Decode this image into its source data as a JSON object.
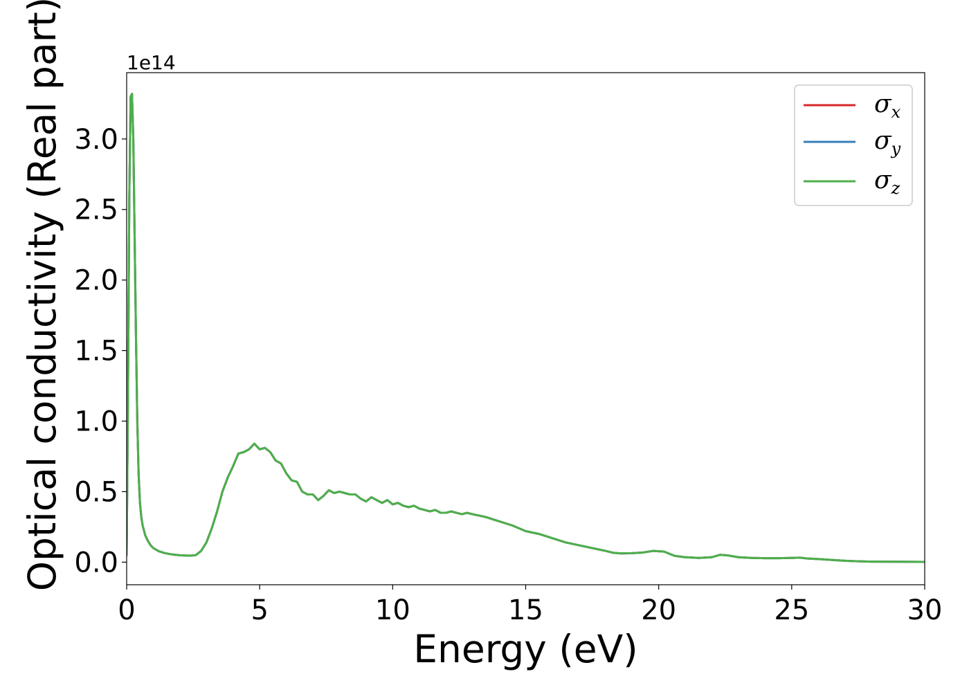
{
  "chart_data": {
    "type": "line",
    "title": "",
    "xlabel": "Energy (eV)",
    "ylabel": "Optical conductivity (Real part)",
    "y_offset_label": "1e14",
    "xlim": [
      0,
      30
    ],
    "ylim": [
      -0.16,
      3.47
    ],
    "x_ticks": [
      0,
      5,
      10,
      15,
      20,
      25,
      30
    ],
    "x_tick_labels": [
      "0",
      "5",
      "10",
      "15",
      "20",
      "25",
      "30"
    ],
    "y_ticks": [
      0.0,
      0.5,
      1.0,
      1.5,
      2.0,
      2.5,
      3.0
    ],
    "y_tick_labels": [
      "0.0",
      "0.5",
      "1.0",
      "1.5",
      "2.0",
      "2.5",
      "3.0"
    ],
    "grid": false,
    "legend_position": "top-right",
    "x": [
      0.0,
      0.05,
      0.1,
      0.15,
      0.2,
      0.25,
      0.3,
      0.35,
      0.4,
      0.45,
      0.5,
      0.55,
      0.6,
      0.7,
      0.8,
      0.9,
      1.0,
      1.2,
      1.4,
      1.6,
      1.8,
      2.0,
      2.2,
      2.4,
      2.6,
      2.8,
      3.0,
      3.2,
      3.4,
      3.6,
      3.8,
      4.0,
      4.2,
      4.4,
      4.6,
      4.8,
      5.0,
      5.2,
      5.4,
      5.6,
      5.8,
      6.0,
      6.2,
      6.4,
      6.6,
      6.8,
      7.0,
      7.2,
      7.4,
      7.6,
      7.8,
      8.0,
      8.2,
      8.4,
      8.6,
      8.8,
      9.0,
      9.2,
      9.4,
      9.6,
      9.8,
      10.0,
      10.2,
      10.4,
      10.6,
      10.8,
      11.0,
      11.2,
      11.4,
      11.6,
      11.8,
      12.0,
      12.2,
      12.4,
      12.6,
      12.8,
      13.0,
      13.5,
      14.0,
      14.5,
      15.0,
      15.5,
      16.0,
      16.5,
      17.0,
      17.5,
      18.0,
      18.3,
      18.6,
      19.0,
      19.4,
      19.8,
      20.2,
      20.6,
      21.0,
      21.5,
      22.0,
      22.3,
      22.6,
      23.0,
      23.5,
      24.0,
      24.5,
      25.0,
      25.3,
      25.6,
      26.0,
      26.5,
      27.0,
      27.5,
      28.0,
      29.0,
      30.0
    ],
    "series": [
      {
        "name": "σx",
        "symbol": "σ",
        "subscript": "x",
        "color": "#d62728",
        "values": [
          0.05,
          1.2,
          2.6,
          3.3,
          3.32,
          3.0,
          2.3,
          1.6,
          1.0,
          0.62,
          0.42,
          0.32,
          0.26,
          0.19,
          0.15,
          0.12,
          0.1,
          0.078,
          0.066,
          0.058,
          0.053,
          0.049,
          0.047,
          0.046,
          0.05,
          0.08,
          0.14,
          0.24,
          0.36,
          0.5,
          0.6,
          0.68,
          0.77,
          0.78,
          0.8,
          0.84,
          0.8,
          0.81,
          0.78,
          0.72,
          0.7,
          0.63,
          0.58,
          0.57,
          0.5,
          0.48,
          0.48,
          0.44,
          0.47,
          0.51,
          0.49,
          0.5,
          0.49,
          0.48,
          0.48,
          0.45,
          0.43,
          0.46,
          0.44,
          0.42,
          0.44,
          0.41,
          0.42,
          0.4,
          0.39,
          0.4,
          0.38,
          0.37,
          0.36,
          0.37,
          0.35,
          0.35,
          0.36,
          0.35,
          0.34,
          0.35,
          0.34,
          0.32,
          0.29,
          0.26,
          0.22,
          0.2,
          0.17,
          0.14,
          0.12,
          0.1,
          0.08,
          0.066,
          0.062,
          0.064,
          0.068,
          0.08,
          0.075,
          0.045,
          0.035,
          0.03,
          0.035,
          0.052,
          0.048,
          0.035,
          0.03,
          0.028,
          0.028,
          0.03,
          0.032,
          0.026,
          0.022,
          0.016,
          0.01,
          0.006,
          0.004,
          0.003,
          0.002
        ]
      },
      {
        "name": "σy",
        "symbol": "σ",
        "subscript": "y",
        "color": "#377eb8",
        "values": [
          0.05,
          1.2,
          2.6,
          3.3,
          3.32,
          3.0,
          2.3,
          1.6,
          1.0,
          0.62,
          0.42,
          0.32,
          0.26,
          0.19,
          0.15,
          0.12,
          0.1,
          0.078,
          0.066,
          0.058,
          0.053,
          0.049,
          0.047,
          0.046,
          0.05,
          0.08,
          0.14,
          0.24,
          0.36,
          0.5,
          0.6,
          0.68,
          0.77,
          0.78,
          0.8,
          0.84,
          0.8,
          0.81,
          0.78,
          0.72,
          0.7,
          0.63,
          0.58,
          0.57,
          0.5,
          0.48,
          0.48,
          0.44,
          0.47,
          0.51,
          0.49,
          0.5,
          0.49,
          0.48,
          0.48,
          0.45,
          0.43,
          0.46,
          0.44,
          0.42,
          0.44,
          0.41,
          0.42,
          0.4,
          0.39,
          0.4,
          0.38,
          0.37,
          0.36,
          0.37,
          0.35,
          0.35,
          0.36,
          0.35,
          0.34,
          0.35,
          0.34,
          0.32,
          0.29,
          0.26,
          0.22,
          0.2,
          0.17,
          0.14,
          0.12,
          0.1,
          0.08,
          0.066,
          0.062,
          0.064,
          0.068,
          0.08,
          0.075,
          0.045,
          0.035,
          0.03,
          0.035,
          0.052,
          0.048,
          0.035,
          0.03,
          0.028,
          0.028,
          0.03,
          0.032,
          0.026,
          0.022,
          0.016,
          0.01,
          0.006,
          0.004,
          0.003,
          0.002
        ]
      },
      {
        "name": "σz",
        "symbol": "σ",
        "subscript": "z",
        "color": "#4daf4a",
        "values": [
          0.05,
          1.2,
          2.6,
          3.3,
          3.32,
          3.0,
          2.3,
          1.6,
          1.0,
          0.62,
          0.42,
          0.32,
          0.26,
          0.19,
          0.15,
          0.12,
          0.1,
          0.078,
          0.066,
          0.058,
          0.053,
          0.049,
          0.047,
          0.046,
          0.05,
          0.08,
          0.14,
          0.24,
          0.36,
          0.5,
          0.6,
          0.68,
          0.77,
          0.78,
          0.8,
          0.84,
          0.8,
          0.81,
          0.78,
          0.72,
          0.7,
          0.63,
          0.58,
          0.57,
          0.5,
          0.48,
          0.48,
          0.44,
          0.47,
          0.51,
          0.49,
          0.5,
          0.49,
          0.48,
          0.48,
          0.45,
          0.43,
          0.46,
          0.44,
          0.42,
          0.44,
          0.41,
          0.42,
          0.4,
          0.39,
          0.4,
          0.38,
          0.37,
          0.36,
          0.37,
          0.35,
          0.35,
          0.36,
          0.35,
          0.34,
          0.35,
          0.34,
          0.32,
          0.29,
          0.26,
          0.22,
          0.2,
          0.17,
          0.14,
          0.12,
          0.1,
          0.08,
          0.066,
          0.062,
          0.064,
          0.068,
          0.08,
          0.075,
          0.045,
          0.035,
          0.03,
          0.035,
          0.052,
          0.048,
          0.035,
          0.03,
          0.028,
          0.028,
          0.03,
          0.032,
          0.026,
          0.022,
          0.016,
          0.01,
          0.006,
          0.004,
          0.003,
          0.002
        ]
      }
    ]
  }
}
